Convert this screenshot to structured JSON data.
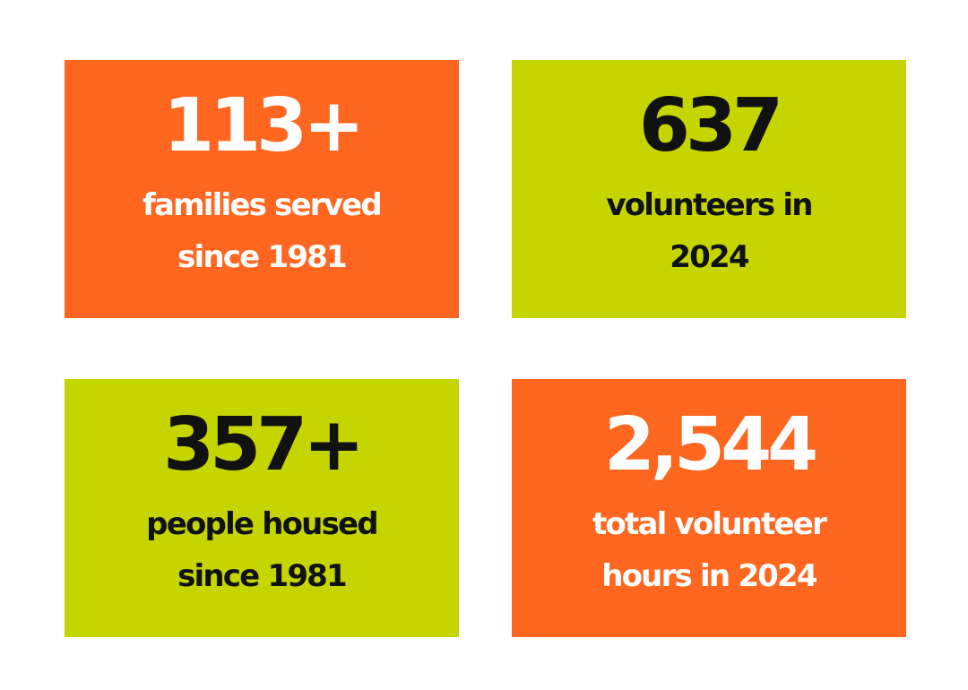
{
  "colors": {
    "orange": "#ff6720",
    "green": "#c5d500",
    "text_light": "#ffffff",
    "text_dark": "#111111"
  },
  "stats": [
    {
      "value": "113+",
      "line1": "families served",
      "line2": "since 1981",
      "color": "orange"
    },
    {
      "value": "637",
      "line1": "volunteers in",
      "line2": "2024",
      "color": "green"
    },
    {
      "value": "357+",
      "line1": "people housed",
      "line2": "since 1981",
      "color": "green"
    },
    {
      "value": "2,544",
      "line1": "total volunteer",
      "line2": "hours in 2024",
      "color": "orange"
    }
  ]
}
